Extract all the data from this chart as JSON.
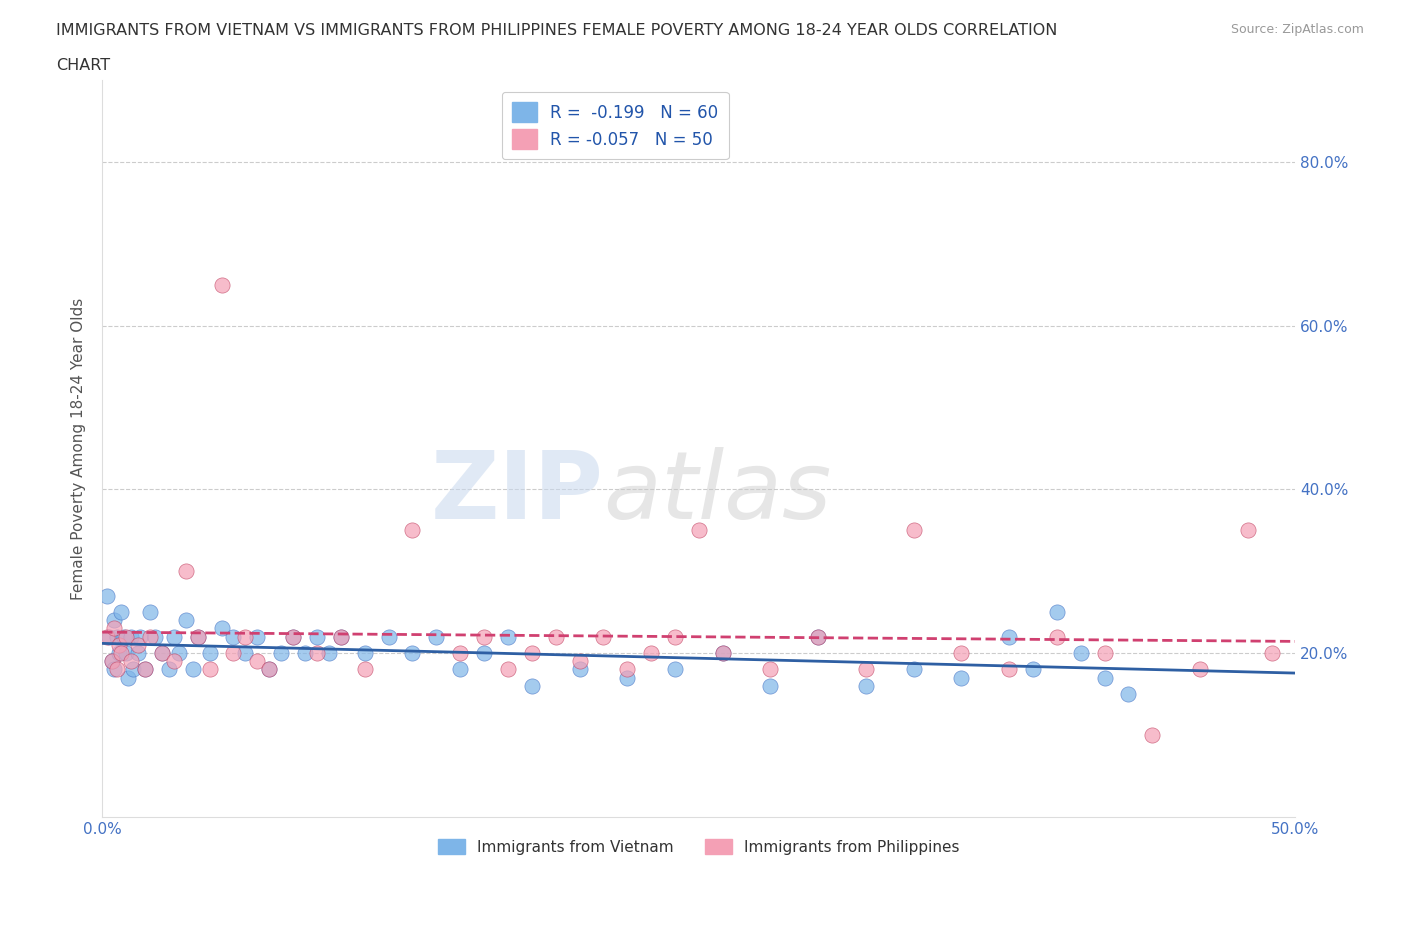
{
  "title_line1": "IMMIGRANTS FROM VIETNAM VS IMMIGRANTS FROM PHILIPPINES FEMALE POVERTY AMONG 18-24 YEAR OLDS CORRELATION",
  "title_line2": "CHART",
  "source": "Source: ZipAtlas.com",
  "ylabel": "Female Poverty Among 18-24 Year Olds",
  "xlim": [
    0.0,
    0.5
  ],
  "ylim": [
    0.0,
    0.9
  ],
  "xticks": [
    0.0,
    0.1,
    0.2,
    0.3,
    0.4,
    0.5
  ],
  "xticklabels": [
    "0.0%",
    "",
    "",
    "",
    "",
    "50.0%"
  ],
  "yticks": [
    0.0,
    0.2,
    0.4,
    0.6,
    0.8
  ],
  "yticklabels": [
    "",
    "20.0%",
    "40.0%",
    "60.0%",
    "80.0%"
  ],
  "grid_color": "#cccccc",
  "watermark_zip": "ZIP",
  "watermark_atlas": "atlas",
  "series": [
    {
      "name": "Immigrants from Vietnam",
      "color": "#7eb5e8",
      "edge_color": "#4472c4",
      "R": -0.199,
      "N": 60,
      "trend_color": "#2e5fa3",
      "trend_style": "solid",
      "x": [
        0.002,
        0.003,
        0.004,
        0.005,
        0.005,
        0.006,
        0.007,
        0.008,
        0.009,
        0.01,
        0.011,
        0.012,
        0.013,
        0.015,
        0.016,
        0.018,
        0.02,
        0.022,
        0.025,
        0.028,
        0.03,
        0.032,
        0.035,
        0.038,
        0.04,
        0.045,
        0.05,
        0.055,
        0.06,
        0.065,
        0.07,
        0.075,
        0.08,
        0.085,
        0.09,
        0.095,
        0.1,
        0.11,
        0.12,
        0.13,
        0.14,
        0.15,
        0.16,
        0.17,
        0.18,
        0.2,
        0.22,
        0.24,
        0.26,
        0.28,
        0.3,
        0.32,
        0.34,
        0.36,
        0.38,
        0.39,
        0.4,
        0.41,
        0.42,
        0.43
      ],
      "y": [
        0.27,
        0.22,
        0.19,
        0.24,
        0.18,
        0.22,
        0.2,
        0.25,
        0.22,
        0.2,
        0.17,
        0.22,
        0.18,
        0.2,
        0.22,
        0.18,
        0.25,
        0.22,
        0.2,
        0.18,
        0.22,
        0.2,
        0.24,
        0.18,
        0.22,
        0.2,
        0.23,
        0.22,
        0.2,
        0.22,
        0.18,
        0.2,
        0.22,
        0.2,
        0.22,
        0.2,
        0.22,
        0.2,
        0.22,
        0.2,
        0.22,
        0.18,
        0.2,
        0.22,
        0.16,
        0.18,
        0.17,
        0.18,
        0.2,
        0.16,
        0.22,
        0.16,
        0.18,
        0.17,
        0.22,
        0.18,
        0.25,
        0.2,
        0.17,
        0.15
      ]
    },
    {
      "name": "Immigrants from Philippines",
      "color": "#f4a0b5",
      "edge_color": "#c04060",
      "R": -0.057,
      "N": 50,
      "trend_color": "#d04070",
      "trend_style": "dashed",
      "x": [
        0.002,
        0.004,
        0.005,
        0.006,
        0.007,
        0.008,
        0.01,
        0.012,
        0.015,
        0.018,
        0.02,
        0.025,
        0.03,
        0.035,
        0.04,
        0.045,
        0.05,
        0.055,
        0.06,
        0.065,
        0.07,
        0.08,
        0.09,
        0.1,
        0.11,
        0.13,
        0.15,
        0.16,
        0.17,
        0.18,
        0.19,
        0.2,
        0.21,
        0.22,
        0.23,
        0.24,
        0.25,
        0.26,
        0.28,
        0.3,
        0.32,
        0.34,
        0.36,
        0.38,
        0.4,
        0.42,
        0.44,
        0.46,
        0.48,
        0.49
      ],
      "y": [
        0.22,
        0.19,
        0.23,
        0.18,
        0.21,
        0.2,
        0.22,
        0.19,
        0.21,
        0.18,
        0.22,
        0.2,
        0.19,
        0.3,
        0.22,
        0.18,
        0.65,
        0.2,
        0.22,
        0.19,
        0.18,
        0.22,
        0.2,
        0.22,
        0.18,
        0.35,
        0.2,
        0.22,
        0.18,
        0.2,
        0.22,
        0.19,
        0.22,
        0.18,
        0.2,
        0.22,
        0.35,
        0.2,
        0.18,
        0.22,
        0.18,
        0.35,
        0.2,
        0.18,
        0.22,
        0.2,
        0.1,
        0.18,
        0.35,
        0.2
      ]
    }
  ],
  "legend_entries": [
    {
      "label": "R =  -0.199   N = 60",
      "color": "#7eb5e8"
    },
    {
      "label": "R = -0.057   N = 50",
      "color": "#f4a0b5"
    }
  ],
  "bottom_legend": [
    {
      "label": "Immigrants from Vietnam",
      "color": "#7eb5e8"
    },
    {
      "label": "Immigrants from Philippines",
      "color": "#f4a0b5"
    }
  ],
  "background_color": "#ffffff",
  "title_color": "#333333",
  "tick_color": "#4472c4"
}
